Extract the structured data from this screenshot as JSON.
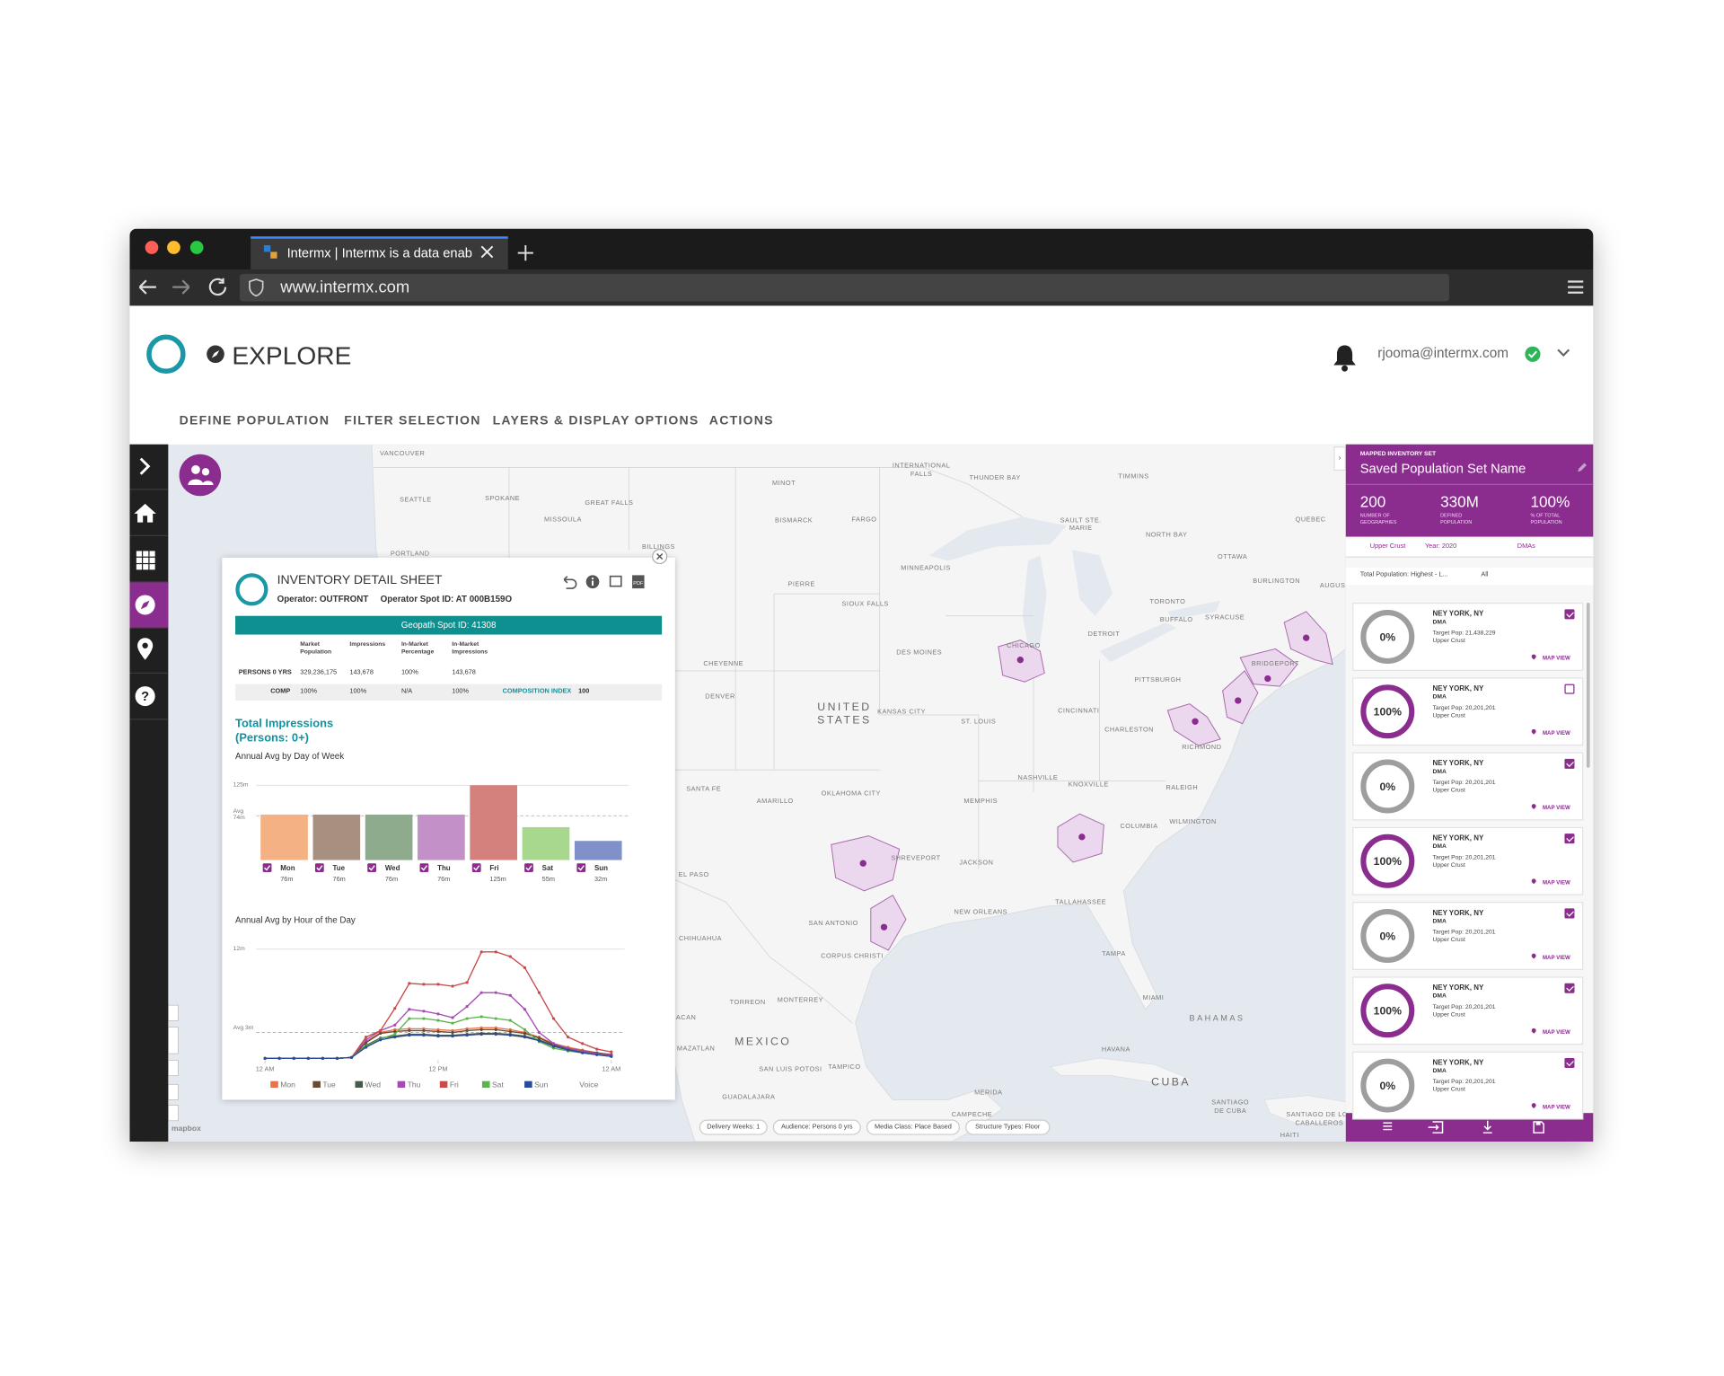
{
  "browser": {
    "tab_title": "Intermx | Intermx is a data enab",
    "url": "www.intermx.com"
  },
  "header": {
    "title": "EXPLORE",
    "user": "rjooma@intermx.com"
  },
  "nav": [
    "DEFINE POPULATION",
    "FILTER SELECTION",
    "LAYERS & DISPLAY OPTIONS",
    "ACTIONS"
  ],
  "map": {
    "labels": [
      "VANCOUVER",
      "SEATTLE",
      "SPOKANE",
      "GREAT FALLS",
      "MISSOULA",
      "PORTLAND",
      "BILLINGS",
      "MINOT",
      "BISMARCK",
      "FARGO",
      "INTERNATIONAL",
      "FALLS",
      "THUNDER BAY",
      "TIMMINS",
      "SAULT STE.",
      "MARIE",
      "QUEBEC",
      "NORTH BAY",
      "OTTAWA",
      "PIERRE",
      "MINNEAPOLIS",
      "SIOUX FALLS",
      "BURLINGTON",
      "AUGUS",
      "TORONTO",
      "BUFFALO",
      "SYRACUSE",
      "DETROIT",
      "CHICAGO",
      "DES MOINES",
      "CHEYENNE",
      "DENVER",
      "BRIDGEPORT",
      "PITTSBURGH",
      "UNITED",
      "STATES",
      "KANSAS CITY",
      "ST. LOUIS",
      "CINCINNATI",
      "CHARLESTON",
      "RICHMOND",
      "SANTA FE",
      "AMARILLO",
      "OKLAHOMA CITY",
      "NASHVILLE",
      "KNOXVILLE",
      "RALEIGH",
      "MEMPHIS",
      "WILMINGTON",
      "COLUMBIA",
      "SHREVEPORT",
      "JACKSON",
      "EL PASO",
      "TALLAHASSEE",
      "NEW ORLEANS",
      "SAN ANTONIO",
      "CHIHUAHUA",
      "CORPUS CHRISTI",
      "TAMPA",
      "MIAMI",
      "TORREON",
      "MONTERREY",
      "BAHAMAS",
      "MEXICO",
      "HAVANA",
      "SAN LUIS POTOSI",
      "TAMPICO",
      "GUADALAJARA",
      "CUBA",
      "MERIDA",
      "CAMPECHE",
      "SANTIAGO",
      "DE CUBA",
      "SANTIAGO DE LOS",
      "CABALLEROS",
      "HAITI",
      "ACAN",
      "MAZATLAN"
    ],
    "attribution": "mapbox",
    "chips": [
      "Delivery Weeks: 1",
      "Audience: Persons 0 yrs",
      "Media Class: Place Based",
      "Structure Types: Floor"
    ]
  },
  "sheet": {
    "title": "INVENTORY DETAIL SHEET",
    "operator": "Operator: OUTFRONT",
    "spot_id": "Operator Spot ID: AT 000B159O",
    "geopath_id": "Geopath Spot ID: 41308",
    "table": {
      "columns": [
        "Market Population",
        "Impressions",
        "In-Market Percentage",
        "In-Market Impressions"
      ],
      "rows": [
        [
          "PERSONS 0 YRS",
          "329,236,175",
          "143,678",
          "100%",
          "143,678"
        ],
        [
          "COMP",
          "100%",
          "100%",
          "N/A",
          "100%"
        ]
      ],
      "index_label": "COMPOSITION INDEX",
      "index_value": "100"
    },
    "heading": "Total Impressions (Persons: 0+)"
  },
  "chart_data": [
    {
      "type": "bar",
      "title": "Annual Avg by Day of Week",
      "categories": [
        "Mon",
        "Tue",
        "Wed",
        "Thu",
        "Fri",
        "Sat",
        "Sun"
      ],
      "values": [
        76,
        76,
        76,
        76,
        125,
        55,
        32
      ],
      "value_labels": [
        "76m",
        "76m",
        "76m",
        "76m",
        "125m",
        "55m",
        "32m"
      ],
      "colors": [
        "#f4b183",
        "#a89080",
        "#8eab8e",
        "#c490c8",
        "#d4807c",
        "#a8d88e",
        "#8090c8"
      ],
      "ylim": [
        0,
        125
      ],
      "yticks": [
        {
          "value": 125,
          "label": "125m"
        },
        {
          "value": 74,
          "label": "Avg 74m"
        }
      ]
    },
    {
      "type": "line",
      "title": "Annual Avg by Hour of the Day",
      "x": [
        0,
        1,
        2,
        3,
        4,
        5,
        6,
        7,
        8,
        9,
        10,
        11,
        12,
        13,
        14,
        15,
        16,
        17,
        18,
        19,
        20,
        21,
        22,
        23,
        24
      ],
      "xlim": [
        0,
        24
      ],
      "xticks": [
        {
          "value": 0,
          "label": "12 AM"
        },
        {
          "value": 12,
          "label": "12 PM"
        },
        {
          "value": 24,
          "label": "12 AM"
        }
      ],
      "ylim": [
        0,
        12
      ],
      "yticks": [
        {
          "value": 12,
          "label": "12m"
        },
        {
          "value": 3,
          "label": "Avg 3m"
        }
      ],
      "series": [
        {
          "name": "Mon",
          "color": "#e8734a",
          "values": [
            0.2,
            0.2,
            0.2,
            0.2,
            0.2,
            0.2,
            0.3,
            2.0,
            3.0,
            3.3,
            3.4,
            3.4,
            3.3,
            3.2,
            3.4,
            3.5,
            3.5,
            3.3,
            3.0,
            2.5,
            1.8,
            1.4,
            1.1,
            0.8,
            0.6
          ]
        },
        {
          "name": "Tue",
          "color": "#6b4a32",
          "values": [
            0.2,
            0.2,
            0.2,
            0.2,
            0.2,
            0.2,
            0.3,
            1.9,
            2.9,
            3.1,
            3.2,
            3.2,
            3.1,
            3.0,
            3.2,
            3.3,
            3.3,
            3.1,
            2.9,
            2.4,
            1.7,
            1.3,
            1.0,
            0.8,
            0.6
          ]
        },
        {
          "name": "Wed",
          "color": "#4a5a4a",
          "values": [
            0.2,
            0.2,
            0.2,
            0.2,
            0.2,
            0.2,
            0.3,
            1.6,
            2.4,
            2.6,
            2.8,
            2.8,
            2.7,
            2.7,
            2.8,
            2.9,
            2.9,
            2.8,
            2.6,
            2.2,
            1.6,
            1.2,
            0.9,
            0.7,
            0.5
          ]
        },
        {
          "name": "Thu",
          "color": "#a64ab4",
          "values": [
            0.2,
            0.2,
            0.2,
            0.2,
            0.2,
            0.2,
            0.3,
            2.2,
            3.2,
            3.8,
            5.5,
            5.3,
            5.0,
            4.6,
            5.8,
            7.3,
            7.3,
            7.0,
            5.5,
            3.0,
            1.8,
            1.3,
            1.0,
            0.7,
            0.5
          ]
        },
        {
          "name": "Fri",
          "color": "#c84a4a",
          "values": [
            0.2,
            0.2,
            0.2,
            0.2,
            0.2,
            0.2,
            0.3,
            2.5,
            3.2,
            5.6,
            8.3,
            8.2,
            8.2,
            8.0,
            8.4,
            11.7,
            11.7,
            11.2,
            10.0,
            7.3,
            4.5,
            2.5,
            1.8,
            1.2,
            0.9
          ]
        },
        {
          "name": "Sat",
          "color": "#5ab44a",
          "values": [
            0.2,
            0.2,
            0.2,
            0.2,
            0.2,
            0.2,
            0.3,
            1.5,
            2.3,
            2.8,
            4.5,
            4.5,
            4.3,
            4.0,
            4.5,
            4.7,
            4.5,
            4.3,
            3.3,
            2.0,
            1.3,
            1.0,
            0.8,
            0.6,
            0.4
          ]
        },
        {
          "name": "Sun",
          "color": "#2a4a9a",
          "values": [
            0.2,
            0.2,
            0.2,
            0.2,
            0.2,
            0.2,
            0.3,
            1.4,
            2.2,
            2.5,
            2.7,
            2.7,
            2.6,
            2.6,
            2.7,
            2.8,
            2.8,
            2.7,
            2.5,
            2.1,
            1.5,
            1.1,
            0.8,
            0.6,
            0.4
          ]
        }
      ],
      "legend_extra": "Voice"
    }
  ],
  "panel": {
    "label": "MAPPED INVENTORY SET",
    "name": "Saved Population Set Name",
    "stats": [
      {
        "value": "200",
        "label": "NUMBER OF GEOGRAPHIES"
      },
      {
        "value": "330M",
        "label": "DEFINED POPULATION"
      },
      {
        "value": "100%",
        "label": "% OF TOTAL POPULATION"
      }
    ],
    "filters": [
      "Upper Crust",
      "Year: 2020",
      "DMAs"
    ],
    "sort": "Total Population: Highest - L...",
    "sort_filter": "All",
    "map_view": "MAP VIEW",
    "cards": [
      {
        "percent": "0%",
        "name": "NEY YORK, NY",
        "type": "DMA",
        "target": "Target Pop: 21,438,229",
        "segment": "Upper Crust",
        "checked": true
      },
      {
        "percent": "100%",
        "name": "NEY YORK, NY",
        "type": "DMA",
        "target": "Target Pop: 20,201,201",
        "segment": "Upper Crust",
        "checked": false
      },
      {
        "percent": "0%",
        "name": "NEY YORK, NY",
        "type": "DMA",
        "target": "Target Pop: 20,201,201",
        "segment": "Upper Crust",
        "checked": true
      },
      {
        "percent": "100%",
        "name": "NEY YORK, NY",
        "type": "DMA",
        "target": "Target Pop: 20,201,201",
        "segment": "Upper Crust",
        "checked": true
      },
      {
        "percent": "0%",
        "name": "NEY YORK, NY",
        "type": "DMA",
        "target": "Target Pop: 20,201,201",
        "segment": "Upper Crust",
        "checked": true
      },
      {
        "percent": "100%",
        "name": "NEY YORK, NY",
        "type": "DMA",
        "target": "Target Pop: 20,201,201",
        "segment": "Upper Crust",
        "checked": true
      },
      {
        "percent": "0%",
        "name": "NEY YORK, NY",
        "type": "DMA",
        "target": "Target Pop: 20,201,201",
        "segment": "Upper Crust",
        "checked": true
      }
    ]
  }
}
